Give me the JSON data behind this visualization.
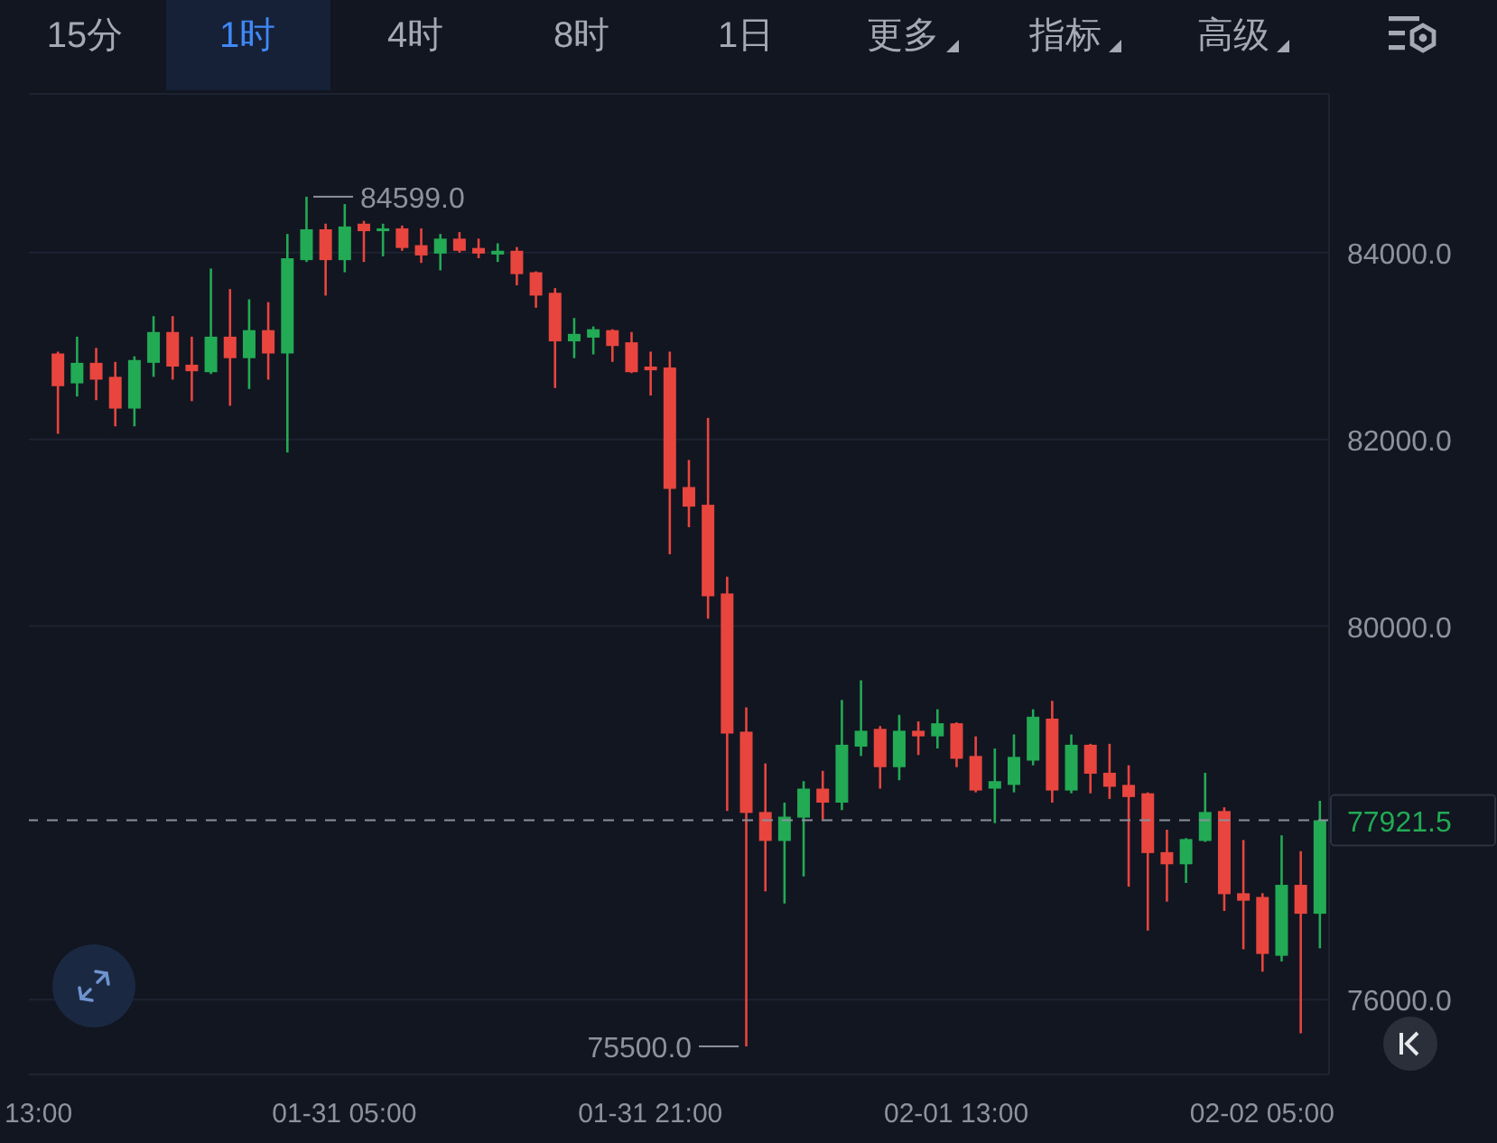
{
  "chart_data": {
    "type": "candlestick",
    "categories": [
      "13:00",
      null,
      null,
      null,
      null,
      null,
      null,
      null,
      null,
      null,
      null,
      null,
      null,
      null,
      null,
      null,
      "01-31 05:00",
      null,
      null,
      null,
      null,
      null,
      null,
      null,
      null,
      null,
      null,
      null,
      null,
      null,
      null,
      null,
      "01-31 21:00",
      null,
      null,
      null,
      null,
      null,
      null,
      null,
      null,
      null,
      null,
      null,
      null,
      null,
      null,
      null,
      "02-01 13:00",
      null,
      null,
      null,
      null,
      null,
      null,
      null,
      null,
      null,
      null,
      null,
      null,
      null,
      null,
      null,
      "02-02 05:00",
      null,
      null,
      null
    ],
    "ohlc": [
      null,
      [
        82920,
        82940,
        82060,
        82570
      ],
      [
        82600,
        83100,
        82460,
        82820
      ],
      [
        82820,
        82980,
        82420,
        82640
      ],
      [
        82670,
        82830,
        82140,
        82330
      ],
      [
        82330,
        82890,
        82140,
        82850
      ],
      [
        82820,
        83320,
        82670,
        83150
      ],
      [
        83150,
        83320,
        82640,
        82780
      ],
      [
        82800,
        83100,
        82410,
        82730
      ],
      [
        82720,
        83830,
        82700,
        83100
      ],
      [
        83100,
        83610,
        82360,
        82870
      ],
      [
        82870,
        83500,
        82540,
        83170
      ],
      [
        83170,
        83470,
        82640,
        82920
      ],
      [
        82920,
        84200,
        81860,
        83940
      ],
      [
        83920,
        84599,
        83900,
        84250
      ],
      [
        84250,
        84310,
        83540,
        83920
      ],
      [
        83920,
        84520,
        83790,
        84280
      ],
      [
        84310,
        84340,
        83900,
        84230
      ],
      [
        84230,
        84310,
        83960,
        84260
      ],
      [
        84260,
        84290,
        84020,
        84050
      ],
      [
        84080,
        84260,
        83890,
        83970
      ],
      [
        83990,
        84200,
        83810,
        84150
      ],
      [
        84150,
        84220,
        84000,
        84020
      ],
      [
        84050,
        84150,
        83940,
        83990
      ],
      [
        83980,
        84100,
        83900,
        84020
      ],
      [
        84020,
        84060,
        83650,
        83770
      ],
      [
        83790,
        83800,
        83410,
        83540
      ],
      [
        83570,
        83620,
        82550,
        83050
      ],
      [
        83050,
        83300,
        82870,
        83130
      ],
      [
        83090,
        83210,
        82910,
        83180
      ],
      [
        83170,
        83180,
        82830,
        83000
      ],
      [
        83040,
        83150,
        82710,
        82720
      ],
      [
        82780,
        82940,
        82470,
        82740
      ],
      [
        82770,
        82940,
        80770,
        81470
      ],
      [
        81490,
        81780,
        81060,
        81280
      ],
      [
        81300,
        82230,
        80080,
        80320
      ],
      [
        80350,
        80530,
        78020,
        78850
      ],
      [
        78870,
        79130,
        75500,
        78000
      ],
      [
        78010,
        78530,
        77160,
        77700
      ],
      [
        77700,
        78110,
        77030,
        77960
      ],
      [
        77950,
        78340,
        77320,
        78260
      ],
      [
        78260,
        78450,
        77930,
        78110
      ],
      [
        78110,
        79210,
        78030,
        78730
      ],
      [
        78710,
        79420,
        78610,
        78880
      ],
      [
        78900,
        78930,
        78260,
        78490
      ],
      [
        78490,
        79050,
        78350,
        78880
      ],
      [
        78880,
        78980,
        78620,
        78820
      ],
      [
        78820,
        79110,
        78690,
        78960
      ],
      [
        78960,
        78970,
        78490,
        78580
      ],
      [
        78610,
        78820,
        78220,
        78240
      ],
      [
        78260,
        78690,
        77890,
        78340
      ],
      [
        78300,
        78840,
        78220,
        78600
      ],
      [
        78560,
        79110,
        78510,
        79030
      ],
      [
        79010,
        79200,
        78110,
        78240
      ],
      [
        78240,
        78840,
        78210,
        78730
      ],
      [
        78730,
        78740,
        78210,
        78420
      ],
      [
        78430,
        78740,
        78150,
        78280
      ],
      [
        78300,
        78510,
        77210,
        78170
      ],
      [
        78210,
        78220,
        76740,
        77570
      ],
      [
        77580,
        77820,
        77050,
        77450
      ],
      [
        77450,
        77730,
        77250,
        77720
      ],
      [
        77700,
        78430,
        77690,
        78010
      ],
      [
        78020,
        78060,
        76950,
        77130
      ],
      [
        77140,
        77710,
        76540,
        77060
      ],
      [
        77100,
        77140,
        76300,
        76490
      ],
      [
        76470,
        77760,
        76410,
        77230
      ],
      [
        77230,
        77590,
        75640,
        76920
      ],
      [
        76920,
        78130,
        76550,
        77921.5
      ]
    ],
    "colors": [
      null,
      "#e8453f",
      "#22ab54",
      "#e8453f",
      "#e8453f",
      "#22ab54",
      "#22ab54",
      "#e8453f",
      "#e8453f",
      "#22ab54",
      "#e8453f",
      "#22ab54",
      "#e8453f",
      "#22ab54",
      "#22ab54",
      "#e8453f",
      "#22ab54",
      "#e8453f",
      "#22ab54",
      "#e8453f",
      "#e8453f",
      "#22ab54",
      "#e8453f",
      "#e8453f",
      "#22ab54",
      "#e8453f",
      "#e8453f",
      "#e8453f",
      "#22ab54",
      "#22ab54",
      "#e8453f",
      "#e8453f",
      "#e8453f",
      "#e8453f",
      "#e8453f",
      "#e8453f",
      "#e8453f",
      "#e8453f",
      "#e8453f",
      "#22ab54",
      "#22ab54",
      "#e8453f",
      "#22ab54",
      "#22ab54",
      "#e8453f",
      "#22ab54",
      "#e8453f",
      "#22ab54",
      "#e8453f",
      "#e8453f",
      "#22ab54",
      "#22ab54",
      "#22ab54",
      "#e8453f",
      "#22ab54",
      "#e8453f",
      "#e8453f",
      "#e8453f",
      "#e8453f",
      "#e8453f",
      "#22ab54",
      "#22ab54",
      "#e8453f",
      "#e8453f",
      "#e8453f",
      "#22ab54",
      "#e8453f",
      "#22ab54"
    ],
    "ylim": [
      75200,
      85700
    ],
    "yticks": [
      {
        "value": 76000,
        "label": "76000.0"
      },
      {
        "value": 80000,
        "label": "80000.0"
      },
      {
        "value": 82000,
        "label": "82000.0"
      },
      {
        "value": 84000,
        "label": "84000.0"
      }
    ],
    "grid": "y",
    "ref_lines": [
      {
        "axis": "y",
        "value": 77921.5,
        "label": "77921.5",
        "color": "#8a909c",
        "line_style": "dashed"
      }
    ],
    "annotations": [
      "15分",
      "1时",
      "4时",
      "8时",
      "1日",
      "更多",
      "指标",
      "高级",
      "84599.0",
      "75500.0"
    ]
  }
}
